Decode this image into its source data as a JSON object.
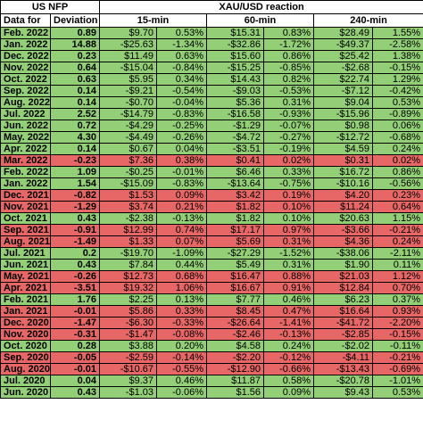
{
  "colors": {
    "positive": "#92cf76",
    "negative": "#e76666"
  },
  "header": {
    "nfp_title": "US NFP",
    "reaction_title": "XAU/USD reaction",
    "col_date": "Data for",
    "col_dev": "Deviation",
    "tf_15": "15-min",
    "tf_60": "60-min",
    "tf_240": "240-min"
  },
  "rows": [
    {
      "date": "Feb. 2022",
      "dev": "0.89",
      "a1": "$9.70",
      "a2": "0.53%",
      "b1": "$15.31",
      "b2": "0.83%",
      "c1": "$28.49",
      "c2": "1.55%",
      "tone": "pos"
    },
    {
      "date": "Jan. 2022",
      "dev": "14.88",
      "a1": "-$25.63",
      "a2": "-1.34%",
      "b1": "-$32.86",
      "b2": "-1.72%",
      "c1": "-$49.37",
      "c2": "-2.58%",
      "tone": "pos"
    },
    {
      "date": "Dec. 2022",
      "dev": "0.23",
      "a1": "$11.49",
      "a2": "0.63%",
      "b1": "$15.60",
      "b2": "0.86%",
      "c1": "$25.42",
      "c2": "1.38%",
      "tone": "pos"
    },
    {
      "date": "Nov. 2022",
      "dev": "0.64",
      "a1": "-$15.04",
      "a2": "-0.84%",
      "b1": "-$15.25",
      "b2": "-0.85%",
      "c1": "-$2.68",
      "c2": "-0.15%",
      "tone": "pos"
    },
    {
      "date": "Oct. 2022",
      "dev": "0.63",
      "a1": "$5.95",
      "a2": "0.34%",
      "b1": "$14.43",
      "b2": "0.82%",
      "c1": "$22.74",
      "c2": "1.29%",
      "tone": "pos"
    },
    {
      "date": "Sep. 2022",
      "dev": "0.14",
      "a1": "-$9.21",
      "a2": "-0.54%",
      "b1": "-$9.03",
      "b2": "-0.53%",
      "c1": "-$7.12",
      "c2": "-0.42%",
      "tone": "pos"
    },
    {
      "date": "Aug. 2022",
      "dev": "0.14",
      "a1": "-$0.70",
      "a2": "-0.04%",
      "b1": "$5.36",
      "b2": "0.31%",
      "c1": "$9.04",
      "c2": "0.53%",
      "tone": "pos"
    },
    {
      "date": "Jul. 2022",
      "dev": "2.52",
      "a1": "-$14.79",
      "a2": "-0.83%",
      "b1": "-$16.58",
      "b2": "-0.93%",
      "c1": "-$15.96",
      "c2": "-0.89%",
      "tone": "pos"
    },
    {
      "date": "Jun. 2022",
      "dev": "0.72",
      "a1": "-$4.29",
      "a2": "-0.25%",
      "b1": "-$1.29",
      "b2": "-0.07%",
      "c1": "$0.98",
      "c2": "0.06%",
      "tone": "pos"
    },
    {
      "date": "May. 2022",
      "dev": "4.30",
      "a1": "-$4.49",
      "a2": "-0.26%",
      "b1": "-$4.72",
      "b2": "-0.27%",
      "c1": "-$12.72",
      "c2": "-0.68%",
      "tone": "pos"
    },
    {
      "date": "Apr. 2022",
      "dev": "0.14",
      "a1": "$0.67",
      "a2": "0.04%",
      "b1": "-$3.51",
      "b2": "-0.19%",
      "c1": "$4.59",
      "c2": "0.24%",
      "tone": "pos"
    },
    {
      "date": "Mar. 2022",
      "dev": "-0.23",
      "a1": "$7.36",
      "a2": "0.38%",
      "b1": "$0.41",
      "b2": "0.02%",
      "c1": "$0.31",
      "c2": "0.02%",
      "tone": "neg"
    },
    {
      "date": "Feb. 2022",
      "dev": "1.09",
      "a1": "-$0.25",
      "a2": "-0.01%",
      "b1": "$6.46",
      "b2": "0.33%",
      "c1": "$16.72",
      "c2": "0.86%",
      "tone": "pos"
    },
    {
      "date": "Jan. 2022",
      "dev": "1.54",
      "a1": "-$15.09",
      "a2": "-0.83%",
      "b1": "-$13.64",
      "b2": "-0.75%",
      "c1": "-$10.16",
      "c2": "-0.56%",
      "tone": "pos"
    },
    {
      "date": "Dec. 2021",
      "dev": "-0.82",
      "a1": "$1.53",
      "a2": "0.09%",
      "b1": "$3.42",
      "b2": "0.19%",
      "c1": "$4.20",
      "c2": "0.23%",
      "tone": "neg"
    },
    {
      "date": "Nov. 2021",
      "dev": "-1.29",
      "a1": "$3.74",
      "a2": "0.21%",
      "b1": "$1.82",
      "b2": "0.10%",
      "c1": "$11.24",
      "c2": "0.64%",
      "tone": "neg"
    },
    {
      "date": "Oct. 2021",
      "dev": "0.43",
      "a1": "-$2.38",
      "a2": "-0.13%",
      "b1": "$1.82",
      "b2": "0.10%",
      "c1": "$20.63",
      "c2": "1.15%",
      "tone": "pos"
    },
    {
      "date": "Sep. 2021",
      "dev": "-0.91",
      "a1": "$12.99",
      "a2": "0.74%",
      "b1": "$17.17",
      "b2": "0.97%",
      "c1": "-$3.66",
      "c2": "-0.21%",
      "tone": "neg"
    },
    {
      "date": "Aug. 2021",
      "dev": "-1.49",
      "a1": "$1.33",
      "a2": "0.07%",
      "b1": "$5.69",
      "b2": "0.31%",
      "c1": "$4.36",
      "c2": "0.24%",
      "tone": "neg"
    },
    {
      "date": "Jul. 2021",
      "dev": "0.2",
      "a1": "-$19.70",
      "a2": "-1.09%",
      "b1": "-$27.29",
      "b2": "-1.52%",
      "c1": "-$38.06",
      "c2": "-2.11%",
      "tone": "pos"
    },
    {
      "date": "Jun. 2021",
      "dev": "0.43",
      "a1": "$7.84",
      "a2": "0.44%",
      "b1": "$5.49",
      "b2": "0.31%",
      "c1": "$1.90",
      "c2": "0.11%",
      "tone": "pos"
    },
    {
      "date": "May. 2021",
      "dev": "-0.26",
      "a1": "$12.73",
      "a2": "0.68%",
      "b1": "$16.47",
      "b2": "0.88%",
      "c1": "$21.03",
      "c2": "1.12%",
      "tone": "neg"
    },
    {
      "date": "Apr. 2021",
      "dev": "-3.51",
      "a1": "$19.32",
      "a2": "1.06%",
      "b1": "$16.67",
      "b2": "0.91%",
      "c1": "$12.84",
      "c2": "0.70%",
      "tone": "neg"
    },
    {
      "date": "Feb. 2021",
      "dev": "1.76",
      "a1": "$2.25",
      "a2": "0.13%",
      "b1": "$7.77",
      "b2": "0.46%",
      "c1": "$6.23",
      "c2": "0.37%",
      "tone": "pos"
    },
    {
      "date": "Jan. 2021",
      "dev": "-0.01",
      "a1": "$5.86",
      "a2": "0.33%",
      "b1": "$8.45",
      "b2": "0.47%",
      "c1": "$16.64",
      "c2": "0.93%",
      "tone": "neg"
    },
    {
      "date": "Dec. 2020",
      "dev": "-1.47",
      "a1": "-$6.30",
      "a2": "-0.33%",
      "b1": "-$26.64",
      "b2": "-1.41%",
      "c1": "-$41.72",
      "c2": "-2.20%",
      "tone": "neg"
    },
    {
      "date": "Nov. 2020",
      "dev": "-0.31",
      "a1": "-$1.47",
      "a2": "-0.08%",
      "b1": "-$2.46",
      "b2": "-0.13%",
      "c1": "-$2.85",
      "c2": "-0.15%",
      "tone": "neg"
    },
    {
      "date": "Oct. 2020",
      "dev": "0.28",
      "a1": "$3.88",
      "a2": "0.20%",
      "b1": "$4.58",
      "b2": "0.24%",
      "c1": "-$2.02",
      "c2": "-0.11%",
      "tone": "pos"
    },
    {
      "date": "Sep. 2020",
      "dev": "-0.05",
      "a1": "-$2.59",
      "a2": "-0.14%",
      "b1": "-$2.20",
      "b2": "-0.12%",
      "c1": "-$4.11",
      "c2": "-0.21%",
      "tone": "neg"
    },
    {
      "date": "Aug. 2020",
      "dev": "-0.01",
      "a1": "-$10.67",
      "a2": "-0.55%",
      "b1": "-$12.90",
      "b2": "-0.66%",
      "c1": "-$13.43",
      "c2": "-0.69%",
      "tone": "neg"
    },
    {
      "date": "Jul. 2020",
      "dev": "0.04",
      "a1": "$9.37",
      "a2": "0.46%",
      "b1": "$11.87",
      "b2": "0.58%",
      "c1": "-$20.78",
      "c2": "-1.01%",
      "tone": "pos"
    },
    {
      "date": "Jun. 2020",
      "dev": "0.43",
      "a1": "-$1.03",
      "a2": "-0.06%",
      "b1": "$1.56",
      "b2": "0.09%",
      "c1": "$9.43",
      "c2": "0.53%",
      "tone": "pos"
    }
  ]
}
